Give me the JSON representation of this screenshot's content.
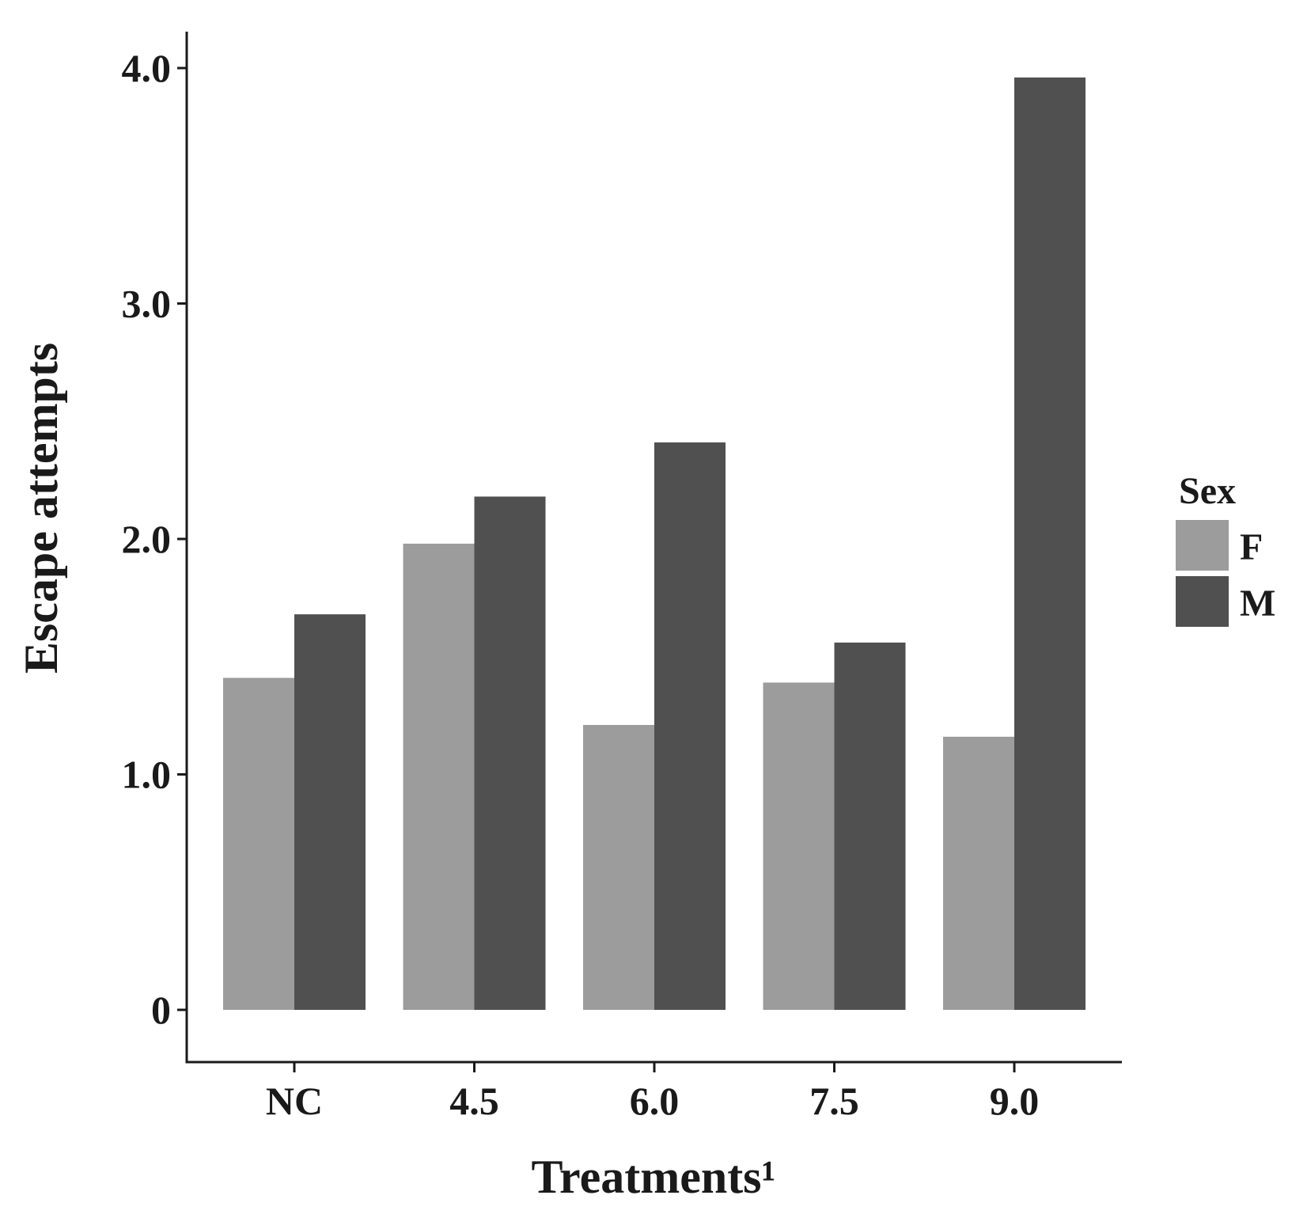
{
  "chart_data": {
    "type": "bar",
    "title": "",
    "xlabel": "Treatments¹",
    "ylabel": "Escape attempts",
    "categories": [
      "NC",
      "4.5",
      "6.0",
      "7.5",
      "9.0"
    ],
    "series": [
      {
        "name": "F",
        "color": "#9c9c9c",
        "values": [
          1.41,
          1.98,
          1.21,
          1.39,
          1.16
        ]
      },
      {
        "name": "M",
        "color": "#505050",
        "values": [
          1.68,
          2.18,
          2.41,
          1.56,
          3.96
        ]
      }
    ],
    "ylim": [
      0,
      4.0
    ],
    "yticks": [
      0,
      1.0,
      2.0,
      3.0,
      4.0
    ],
    "ytick_labels": [
      "0",
      "1.0",
      "2.0",
      "3.0",
      "4.0"
    ],
    "legend": {
      "title": "Sex",
      "position": "right"
    },
    "grid": false
  }
}
